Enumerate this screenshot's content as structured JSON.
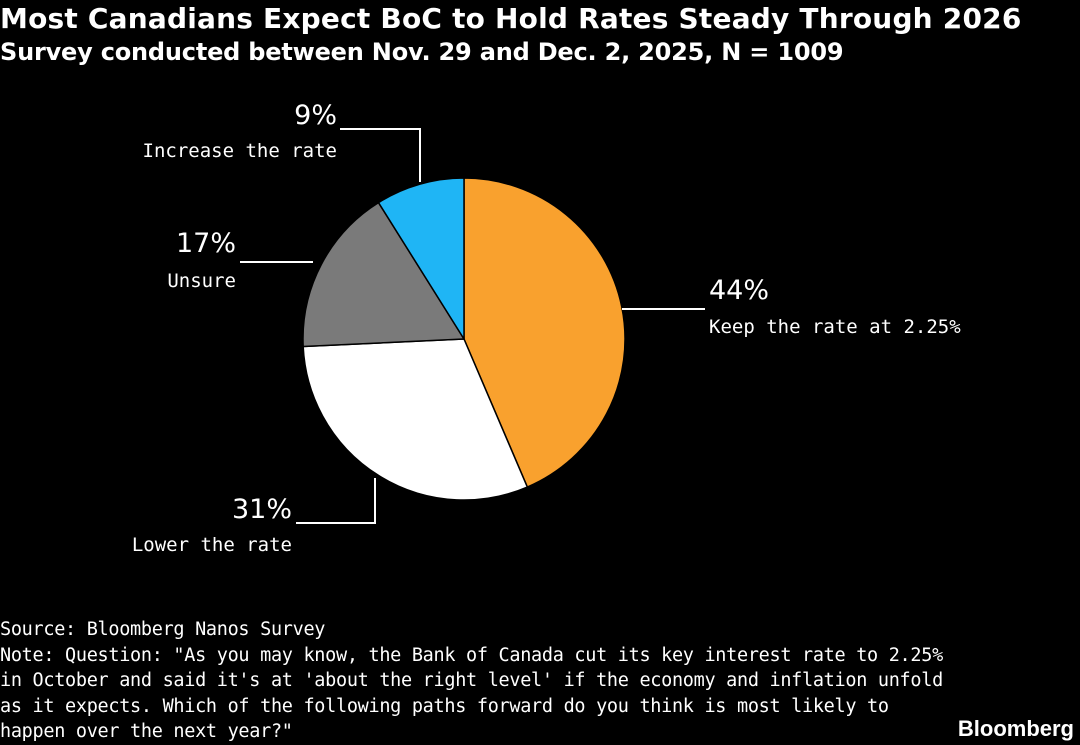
{
  "header": {
    "title": "Most Canadians Expect BoC to Hold Rates Steady Through 2026",
    "subtitle": "Survey conducted between Nov. 29 and Dec. 2, 2025, N = 1009"
  },
  "chart_data": {
    "type": "pie",
    "title": "Most Canadians Expect BoC to Hold Rates Steady Through 2026",
    "subtitle": "Survey conducted between Nov. 29 and Dec. 2, 2025, N = 1009",
    "unit": "%",
    "slices": [
      {
        "label": "Keep the rate at 2.25%",
        "value": 44,
        "value_label": "44%",
        "color": "#f9a12e"
      },
      {
        "label": "Lower the rate",
        "value": 31,
        "value_label": "31%",
        "color": "#ffffff"
      },
      {
        "label": "Unsure",
        "value": 17,
        "value_label": "17%",
        "color": "#7a7a7a"
      },
      {
        "label": "Increase the rate",
        "value": 9,
        "value_label": "9%",
        "color": "#1fb5f5"
      }
    ]
  },
  "footer": {
    "source": "Source: Bloomberg Nanos Survey",
    "note": "Note: Question: \"As you may know, the Bank of Canada cut its key interest rate to 2.25% in October and said it's at 'about the right level' if the economy and inflation unfold as it expects. Which of the following paths forward do you think is most likely to happen over the next year?\"",
    "brand": "Bloomberg"
  }
}
